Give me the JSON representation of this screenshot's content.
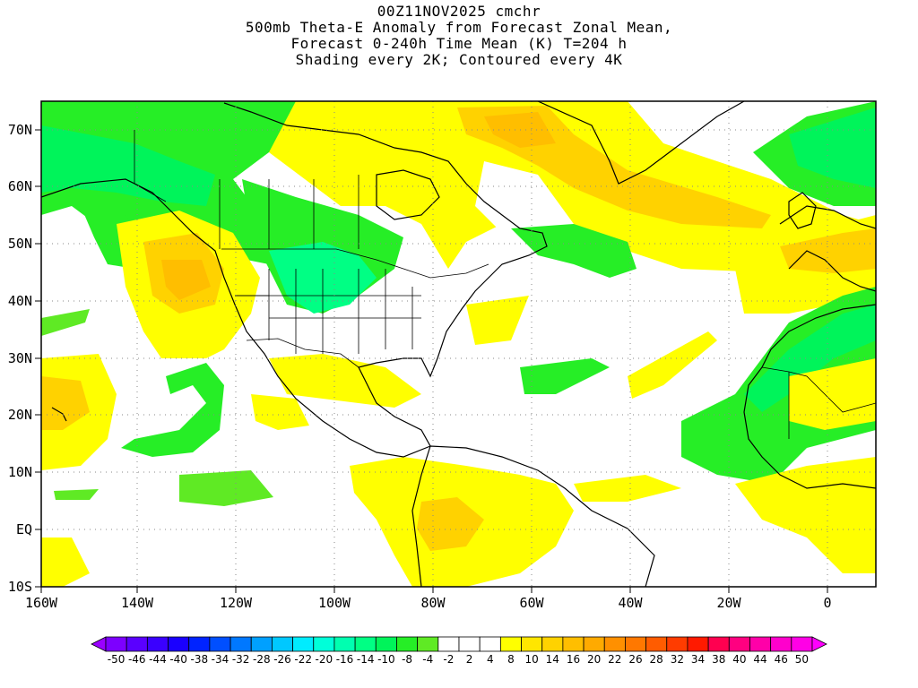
{
  "title": {
    "line1": "00Z11NOV2025 cmchr",
    "line2": "500mb Theta-E Anomaly from Forecast Zonal Mean,",
    "line3": "Forecast 0-240h Time Mean (K) T=204 h",
    "line4": "Shading every 2K; Contoured every 4K"
  },
  "axes": {
    "lon_labels": [
      "160W",
      "140W",
      "120W",
      "100W",
      "80W",
      "60W",
      "40W",
      "20W",
      "0"
    ],
    "lat_labels": [
      "70N",
      "60N",
      "50N",
      "40N",
      "30N",
      "20N",
      "10N",
      "EQ",
      "10S"
    ]
  },
  "colorbar": {
    "labels": [
      "-50",
      "-46",
      "-44",
      "-40",
      "-38",
      "-34",
      "-32",
      "-28",
      "-26",
      "-22",
      "-20",
      "-16",
      "-14",
      "-10",
      "-8",
      "-4",
      "-2",
      "2",
      "4",
      "8",
      "10",
      "14",
      "16",
      "20",
      "22",
      "26",
      "28",
      "32",
      "34",
      "38",
      "40",
      "44",
      "46",
      "50"
    ],
    "colors": [
      "#9a00ff",
      "#7d00ff",
      "#5a00ff",
      "#3a00ff",
      "#1a00ff",
      "#0023ff",
      "#004fff",
      "#0078ff",
      "#00a0ff",
      "#00c8ff",
      "#00ecff",
      "#00ffd9",
      "#00ffb0",
      "#00ff84",
      "#00f45a",
      "#26ee26",
      "#5fea24",
      "#ffffff",
      "#ffffff",
      "#ffffff",
      "#ffff00",
      "#ffe600",
      "#ffd200",
      "#ffbe00",
      "#ffaa00",
      "#ff9000",
      "#ff7800",
      "#ff5c00",
      "#ff3c00",
      "#ff1a00",
      "#ff0050",
      "#ff0080",
      "#ff00a8",
      "#ff00cc",
      "#ff00e6",
      "#ff00ff"
    ]
  },
  "legend_colors": {
    "green_light": "#5fea24",
    "green": "#26ee26",
    "green_teal": "#00f45a",
    "teal": "#00ff84",
    "yellow": "#ffff00",
    "yellow_orange": "#ffe600",
    "gold": "#ffd200",
    "orange": "#ffbe00",
    "dark_orange": "#ffaa00"
  }
}
